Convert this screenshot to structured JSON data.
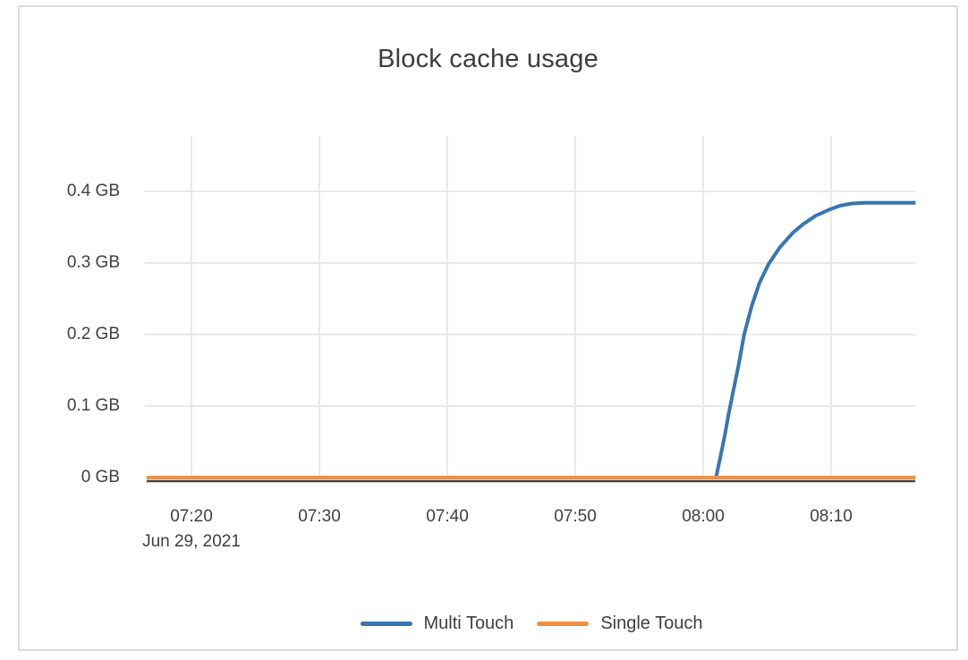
{
  "title": "Block cache usage",
  "colors": {
    "grid": "#e9e9e9",
    "zeroline": "#4a4238",
    "text": "#3f3f3f",
    "card_border": "#dcdcdc",
    "multi_touch": "#3776b1",
    "single_touch": "#f18f42"
  },
  "chart_data": {
    "type": "line",
    "title": "Block cache usage",
    "grid": true,
    "legend_position": "bottom-center",
    "x_axis": {
      "date_label": "Jun 29, 2021",
      "unit": "minutes_after_07:00_Jun_29_2021",
      "range": [
        16.5,
        76.6
      ],
      "ticks": [
        {
          "t": 20,
          "label": "07:20"
        },
        {
          "t": 30,
          "label": "07:30"
        },
        {
          "t": 40,
          "label": "07:40"
        },
        {
          "t": 50,
          "label": "07:50"
        },
        {
          "t": 60,
          "label": "08:00"
        },
        {
          "t": 70,
          "label": "08:10"
        }
      ]
    },
    "y_axis": {
      "unit": "GB",
      "range": [
        0,
        0.45
      ],
      "ticks": [
        {
          "v": 0,
          "label": "0 GB"
        },
        {
          "v": 0.1,
          "label": "0.1 GB"
        },
        {
          "v": 0.2,
          "label": "0.2 GB"
        },
        {
          "v": 0.3,
          "label": "0.3 GB"
        },
        {
          "v": 0.4,
          "label": "0.4 GB"
        }
      ]
    },
    "series": [
      {
        "name": "Multi Touch",
        "color": "#3776b1",
        "points": [
          [
            16.5,
            0
          ],
          [
            40,
            0
          ],
          [
            55,
            0
          ],
          [
            61.0,
            0
          ],
          [
            61.3,
            0.025
          ],
          [
            61.7,
            0.06
          ],
          [
            62.0,
            0.09
          ],
          [
            62.4,
            0.125
          ],
          [
            62.8,
            0.16
          ],
          [
            63.2,
            0.2
          ],
          [
            63.8,
            0.24
          ],
          [
            64.4,
            0.272
          ],
          [
            65.1,
            0.298
          ],
          [
            66.0,
            0.322
          ],
          [
            67.0,
            0.342
          ],
          [
            67.8,
            0.354
          ],
          [
            68.8,
            0.366
          ],
          [
            69.8,
            0.374
          ],
          [
            70.7,
            0.38
          ],
          [
            71.6,
            0.383
          ],
          [
            72.6,
            0.384
          ],
          [
            76.6,
            0.384
          ]
        ]
      },
      {
        "name": "Single Touch",
        "color": "#f18f42",
        "points": [
          [
            16.5,
            0
          ],
          [
            76.6,
            0
          ]
        ]
      }
    ]
  }
}
